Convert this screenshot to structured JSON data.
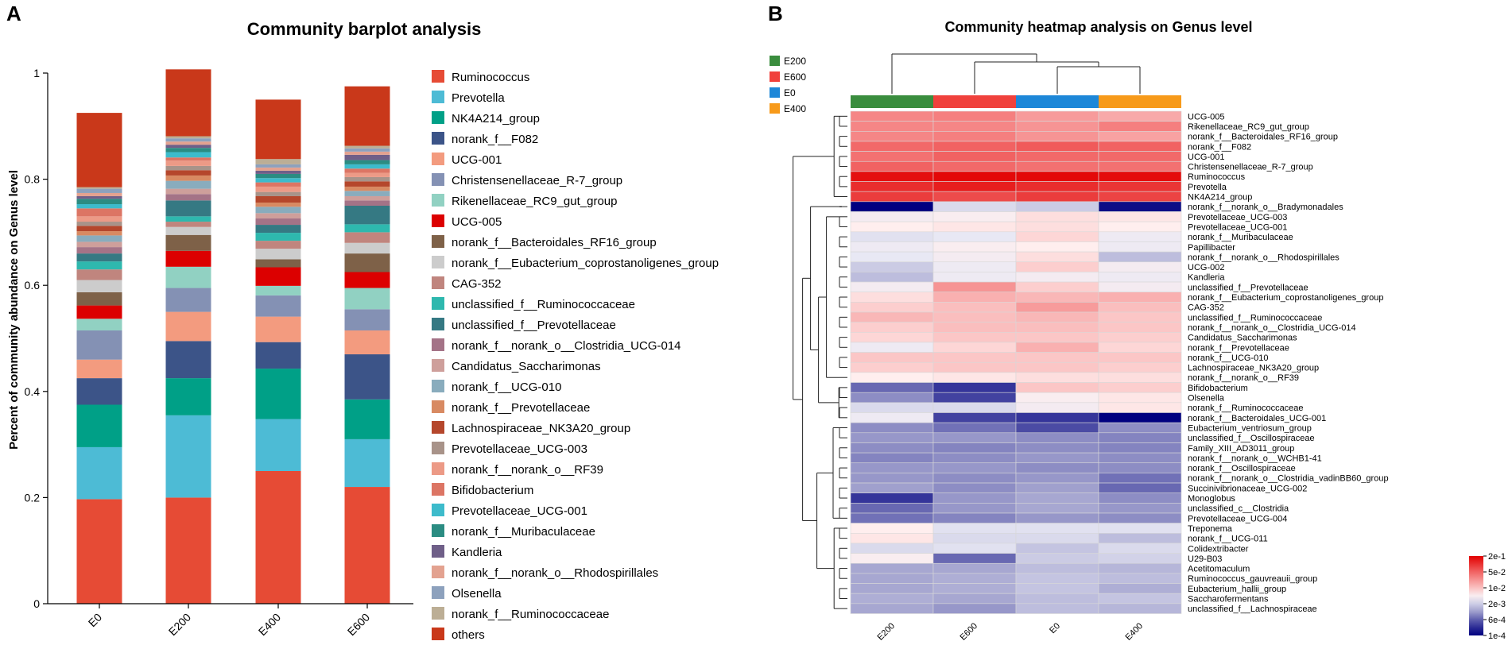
{
  "panels": {
    "a": {
      "letter": "A"
    },
    "b": {
      "letter": "B"
    }
  },
  "chart_data": [
    {
      "type": "bar",
      "stacked": true,
      "title": "Community barplot analysis",
      "xlabel": "",
      "ylabel": "Percent of community abundance on Genus level",
      "ylim": [
        0,
        1
      ],
      "yticks": [
        0,
        0.2,
        0.4,
        0.6,
        0.8,
        1
      ],
      "ytick_labels": [
        "0",
        "0.2",
        "0.4",
        "0.6",
        "0.8",
        "1"
      ],
      "categories": [
        "E0",
        "E200",
        "E400",
        "E600"
      ],
      "legend_position": "right",
      "series": [
        {
          "name": "Ruminococcus",
          "color": "#E64B35",
          "values": [
            0.197,
            0.2,
            0.25,
            0.22
          ]
        },
        {
          "name": "Prevotella",
          "color": "#4DBBD5",
          "values": [
            0.098,
            0.155,
            0.098,
            0.09
          ]
        },
        {
          "name": "NK4A214_group",
          "color": "#00A087",
          "values": [
            0.08,
            0.07,
            0.095,
            0.075
          ]
        },
        {
          "name": "norank_f__F082",
          "color": "#3C5488",
          "values": [
            0.05,
            0.07,
            0.05,
            0.085
          ]
        },
        {
          "name": "UCG-001",
          "color": "#F39B7F",
          "values": [
            0.035,
            0.055,
            0.048,
            0.045
          ]
        },
        {
          "name": "Christensenellaceae_R-7_group",
          "color": "#8491B4",
          "values": [
            0.055,
            0.045,
            0.04,
            0.04
          ]
        },
        {
          "name": "Rikenellaceae_RC9_gut_group",
          "color": "#91D1C2",
          "values": [
            0.022,
            0.04,
            0.018,
            0.04
          ]
        },
        {
          "name": "UCG-005",
          "color": "#DC0000",
          "values": [
            0.025,
            0.03,
            0.035,
            0.03
          ]
        },
        {
          "name": "norank_f__Bacteroidales_RF16_group",
          "color": "#7E6148",
          "values": [
            0.025,
            0.03,
            0.015,
            0.035
          ]
        },
        {
          "name": "norank_f__Eubacterium_coprostanoligenes_group",
          "color": "#CCCCCC",
          "values": [
            0.023,
            0.015,
            0.02,
            0.02
          ]
        },
        {
          "name": "CAG-352",
          "color": "#C0857E",
          "values": [
            0.02,
            0.01,
            0.015,
            0.02
          ]
        },
        {
          "name": "unclassified_f__Ruminococcaceae",
          "color": "#2EB8AE",
          "values": [
            0.015,
            0.01,
            0.015,
            0.015
          ]
        },
        {
          "name": "unclassified_f__Prevotellaceae",
          "color": "#357983",
          "values": [
            0.015,
            0.03,
            0.015,
            0.035
          ]
        },
        {
          "name": "norank_f__norank_o__Clostridia_UCG-014",
          "color": "#A47387",
          "values": [
            0.012,
            0.012,
            0.012,
            0.01
          ]
        },
        {
          "name": "Candidatus_Saccharimonas",
          "color": "#CE9F9B",
          "values": [
            0.01,
            0.01,
            0.01,
            0.008
          ]
        },
        {
          "name": "norank_f__UCG-010",
          "color": "#89ACBD",
          "values": [
            0.012,
            0.015,
            0.012,
            0.01
          ]
        },
        {
          "name": "norank_f__Prevotellaceae",
          "color": "#D88A62",
          "values": [
            0.008,
            0.01,
            0.008,
            0.008
          ]
        },
        {
          "name": "Lachnospiraceae_NK3A20_group",
          "color": "#B5472C",
          "values": [
            0.01,
            0.01,
            0.012,
            0.01
          ]
        },
        {
          "name": "Prevotellaceae_UCG-003",
          "color": "#A89389",
          "values": [
            0.008,
            0.008,
            0.008,
            0.008
          ]
        },
        {
          "name": "norank_f__norank_o__RF39",
          "color": "#EC9A86",
          "values": [
            0.01,
            0.01,
            0.01,
            0.008
          ]
        },
        {
          "name": "Bifidobacterium",
          "color": "#DC7564",
          "values": [
            0.015,
            0.006,
            0.008,
            0.008
          ]
        },
        {
          "name": "Prevotellaceae_UCG-001",
          "color": "#3DBBCB",
          "values": [
            0.008,
            0.01,
            0.008,
            0.008
          ]
        },
        {
          "name": "norank_f__Muribaculaceae",
          "color": "#2B8C82",
          "values": [
            0.01,
            0.008,
            0.008,
            0.008
          ]
        },
        {
          "name": "Kandleria",
          "color": "#6F5F88",
          "values": [
            0.005,
            0.006,
            0.006,
            0.01
          ]
        },
        {
          "name": "norank_f__norank_o__Rhodospirillales",
          "color": "#E3A290",
          "values": [
            0.006,
            0.006,
            0.006,
            0.006
          ]
        },
        {
          "name": "Olsenella",
          "color": "#8DA1BD",
          "values": [
            0.008,
            0.006,
            0.006,
            0.006
          ]
        },
        {
          "name": "norank_f__Ruminococcaceae",
          "color": "#BCAE95",
          "values": [
            0.003,
            0.004,
            0.01,
            0.005
          ]
        },
        {
          "name": "others",
          "color": "#C9381A",
          "values": [
            0.14,
            0.126,
            0.112,
            0.112
          ]
        }
      ]
    },
    {
      "type": "heatmap",
      "title": "Community heatmap analysis on Genus level",
      "columns": [
        "E200",
        "E600",
        "E0",
        "E400"
      ],
      "column_colors": [
        "#3A8D3E",
        "#F0413C",
        "#1D87D8",
        "#F79A1A"
      ],
      "group_legend": [
        "E200",
        "E600",
        "E0",
        "E400"
      ],
      "group_legend_colors": [
        "#3A8D3E",
        "#F0413C",
        "#1D87D8",
        "#F79A1A"
      ],
      "column_dendrogram": "((E200,(E600,(E0,E400))))",
      "scale_type": "log10",
      "scale_labels": [
        "2e-1",
        "5e-2",
        "1e-2",
        "2e-3",
        "6e-4",
        "1e-4"
      ],
      "scale_log_range": [
        -4,
        -0.7
      ],
      "row_clusters": [
        {
          "rows": [
            "UCG-005",
            "Rikenellaceae_RC9_gut_group",
            "norank_f__Bacteroidales_RF16_group",
            "norank_f__F082",
            "UCG-001",
            "Christensenellaceae_R-7_group",
            "Ruminococcus",
            "Prevotella",
            "NK4A214_group"
          ]
        },
        {
          "rows": [
            "norank_f__norank_o__Bradymonadales"
          ]
        },
        {
          "rows": [
            "Prevotellaceae_UCG-003",
            "Prevotellaceae_UCG-001",
            "norank_f__Muribaculaceae",
            "Papillibacter",
            "norank_f__norank_o__Rhodospirillales",
            "UCG-002",
            "Kandleria",
            "unclassified_f__Prevotellaceae",
            "norank_f__Eubacterium_coprostanoligenes_group",
            "CAG-352",
            "unclassified_f__Ruminococcaceae",
            "norank_f__norank_o__Clostridia_UCG-014",
            "Candidatus_Saccharimonas",
            "norank_f__Prevotellaceae",
            "norank_f__UCG-010",
            "Lachnospiraceae_NK3A20_group",
            "norank_f__norank_o__RF39"
          ]
        },
        {
          "rows": [
            "Bifidobacterium",
            "Olsenella",
            "norank_f__Ruminococcaceae",
            "norank_f__Bacteroidales_UCG-001"
          ]
        },
        {
          "rows": [
            "Eubacterium_ventriosum_group",
            "unclassified_f__Oscillospiraceae",
            "Family_XIII_AD3011_group",
            "norank_f__norank_o__WCHB1-41",
            "norank_f__Oscillospiraceae",
            "norank_f__norank_o__Clostridia_vadinBB60_group",
            "Succinivibrionaceae_UCG-002",
            "Monoglobus",
            "unclassified_c__Clostridia",
            "Prevotellaceae_UCG-004"
          ]
        },
        {
          "rows": [
            "Treponema",
            "norank_f__UCG-011",
            "Colidextribacter",
            "U29-B03",
            "Acetitomaculum",
            "Ruminococcus_gauvreauii_group",
            "Eubacterium_hallii_group",
            "Saccharofermentans",
            "unclassified_f__Lachnospiraceae"
          ]
        }
      ],
      "rows": [
        "UCG-005",
        "Rikenellaceae_RC9_gut_group",
        "norank_f__Bacteroidales_RF16_group",
        "norank_f__F082",
        "UCG-001",
        "Christensenellaceae_R-7_group",
        "Ruminococcus",
        "Prevotella",
        "NK4A214_group",
        "norank_f__norank_o__Bradymonadales",
        "Prevotellaceae_UCG-003",
        "Prevotellaceae_UCG-001",
        "norank_f__Muribaculaceae",
        "Papillibacter",
        "norank_f__norank_o__Rhodospirillales",
        "UCG-002",
        "Kandleria",
        "unclassified_f__Prevotellaceae",
        "norank_f__Eubacterium_coprostanoligenes_group",
        "CAG-352",
        "unclassified_f__Ruminococcaceae",
        "norank_f__norank_o__Clostridia_UCG-014",
        "Candidatus_Saccharimonas",
        "norank_f__Prevotellaceae",
        "norank_f__UCG-010",
        "Lachnospiraceae_NK3A20_group",
        "norank_f__norank_o__RF39",
        "Bifidobacterium",
        "Olsenella",
        "norank_f__Ruminococcaceae",
        "norank_f__Bacteroidales_UCG-001",
        "Eubacterium_ventriosum_group",
        "unclassified_f__Oscillospiraceae",
        "Family_XIII_AD3011_group",
        "norank_f__norank_o__WCHB1-41",
        "norank_f__Oscillospiraceae",
        "norank_f__norank_o__Clostridia_vadinBB60_group",
        "Succinivibrionaceae_UCG-002",
        "Monoglobus",
        "unclassified_c__Clostridia",
        "Prevotellaceae_UCG-004",
        "Treponema",
        "norank_f__UCG-011",
        "Colidextribacter",
        "U29-B03",
        "Acetitomaculum",
        "Ruminococcus_gauvreauii_group",
        "Eubacterium_hallii_group",
        "Saccharofermentans",
        "unclassified_f__Lachnospiraceae"
      ],
      "values_log10": [
        [
          -1.6,
          -1.55,
          -1.75,
          -1.85
        ],
        [
          -1.6,
          -1.6,
          -1.7,
          -1.55
        ],
        [
          -1.6,
          -1.55,
          -1.7,
          -1.8
        ],
        [
          -1.4,
          -1.35,
          -1.3,
          -1.35
        ],
        [
          -1.45,
          -1.35,
          -1.4,
          -1.4
        ],
        [
          -1.35,
          -1.4,
          -1.45,
          -1.45
        ],
        [
          -0.8,
          -0.75,
          -0.75,
          -0.78
        ],
        [
          -1.0,
          -0.9,
          -1.0,
          -1.05
        ],
        [
          -1.1,
          -1.2,
          -1.1,
          -1.15
        ],
        [
          -4.0,
          -2.6,
          -2.7,
          -3.9
        ],
        [
          -2.4,
          -2.35,
          -2.2,
          -2.25
        ],
        [
          -2.3,
          -2.25,
          -2.2,
          -2.3
        ],
        [
          -2.55,
          -2.5,
          -2.15,
          -2.45
        ],
        [
          -2.45,
          -2.35,
          -2.3,
          -2.45
        ],
        [
          -2.5,
          -2.4,
          -2.2,
          -2.8
        ],
        [
          -2.7,
          -2.45,
          -2.1,
          -2.4
        ],
        [
          -2.8,
          -2.45,
          -2.4,
          -2.45
        ],
        [
          -2.4,
          -1.7,
          -2.1,
          -2.4
        ],
        [
          -2.2,
          -1.9,
          -1.95,
          -1.9
        ],
        [
          -2.1,
          -2.0,
          -1.75,
          -2.0
        ],
        [
          -1.95,
          -2.0,
          -1.95,
          -2.05
        ],
        [
          -2.1,
          -2.0,
          -2.0,
          -2.05
        ],
        [
          -2.15,
          -2.05,
          -2.05,
          -2.1
        ],
        [
          -2.45,
          -2.15,
          -1.9,
          -2.15
        ],
        [
          -2.05,
          -2.05,
          -2.05,
          -2.05
        ],
        [
          -2.1,
          -2.05,
          -2.05,
          -2.1
        ],
        [
          -2.3,
          -2.25,
          -2.2,
          -2.2
        ],
        [
          -3.3,
          -3.6,
          -2.05,
          -2.1
        ],
        [
          -3.1,
          -3.5,
          -2.35,
          -2.25
        ],
        [
          -2.6,
          -2.6,
          -2.4,
          -2.25
        ],
        [
          -2.45,
          -3.5,
          -3.6,
          -4.0
        ],
        [
          -3.1,
          -3.25,
          -3.45,
          -3.1
        ],
        [
          -3.05,
          -3.05,
          -3.1,
          -3.15
        ],
        [
          -3.1,
          -3.15,
          -3.1,
          -3.15
        ],
        [
          -3.15,
          -3.1,
          -3.05,
          -3.1
        ],
        [
          -3.05,
          -3.05,
          -3.1,
          -3.1
        ],
        [
          -3.05,
          -3.1,
          -3.05,
          -3.25
        ],
        [
          -3.0,
          -3.1,
          -3.0,
          -3.3
        ],
        [
          -3.6,
          -3.05,
          -2.95,
          -3.1
        ],
        [
          -3.3,
          -3.05,
          -2.95,
          -3.05
        ],
        [
          -3.25,
          -3.15,
          -3.05,
          -3.1
        ],
        [
          -2.3,
          -2.55,
          -2.55,
          -2.55
        ],
        [
          -2.25,
          -2.6,
          -2.6,
          -2.8
        ],
        [
          -2.6,
          -2.55,
          -2.75,
          -2.6
        ],
        [
          -2.35,
          -3.3,
          -2.7,
          -2.65
        ],
        [
          -2.95,
          -2.95,
          -2.8,
          -2.85
        ],
        [
          -2.95,
          -2.9,
          -2.75,
          -2.8
        ],
        [
          -2.95,
          -2.9,
          -2.75,
          -2.9
        ],
        [
          -2.9,
          -2.95,
          -2.8,
          -2.75
        ],
        [
          -2.95,
          -3.05,
          -2.8,
          -2.85
        ]
      ]
    }
  ]
}
